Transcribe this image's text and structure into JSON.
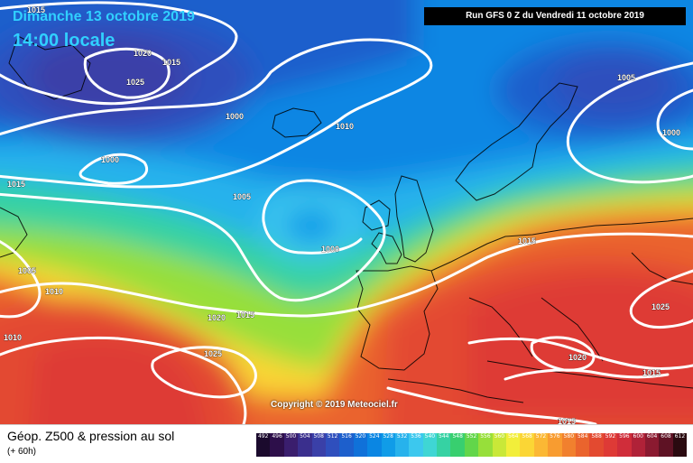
{
  "header": {
    "date_text": "Dimanche 13 octobre 2019",
    "time_text": "14:00 locale",
    "run_text": "Run GFS 0 Z du Vendredi 11 octobre 2019"
  },
  "copyright": "Copyright © 2019 Meteociel.fr",
  "legend": {
    "title": "Géop. Z500 & pression au sol",
    "subtitle": "(+ 60h)",
    "scale": [
      {
        "value": "492",
        "color": "#1b0a2d"
      },
      {
        "value": "496",
        "color": "#2d0f4a"
      },
      {
        "value": "500",
        "color": "#3a1e6d"
      },
      {
        "value": "504",
        "color": "#3a2f8d"
      },
      {
        "value": "508",
        "color": "#3a40a8"
      },
      {
        "value": "512",
        "color": "#2f4fbd"
      },
      {
        "value": "516",
        "color": "#1d5fcc"
      },
      {
        "value": "520",
        "color": "#1071d9"
      },
      {
        "value": "524",
        "color": "#0a86e3"
      },
      {
        "value": "528",
        "color": "#109ce8"
      },
      {
        "value": "532",
        "color": "#27b2ec"
      },
      {
        "value": "536",
        "color": "#3cc8ee"
      },
      {
        "value": "540",
        "color": "#3fd6d4"
      },
      {
        "value": "544",
        "color": "#36d2a3"
      },
      {
        "value": "548",
        "color": "#38cf6f"
      },
      {
        "value": "552",
        "color": "#62d64a"
      },
      {
        "value": "556",
        "color": "#97df3a"
      },
      {
        "value": "560",
        "color": "#c9e838"
      },
      {
        "value": "564",
        "color": "#f2ee3a"
      },
      {
        "value": "568",
        "color": "#fbd635"
      },
      {
        "value": "572",
        "color": "#fbb834"
      },
      {
        "value": "576",
        "color": "#f89c30"
      },
      {
        "value": "580",
        "color": "#f1802e"
      },
      {
        "value": "584",
        "color": "#ea642d"
      },
      {
        "value": "588",
        "color": "#e34a30"
      },
      {
        "value": "592",
        "color": "#de3a36"
      },
      {
        "value": "596",
        "color": "#d02d3a"
      },
      {
        "value": "600",
        "color": "#b02238"
      },
      {
        "value": "604",
        "color": "#8a1a30"
      },
      {
        "value": "608",
        "color": "#5e1224"
      },
      {
        "value": "612",
        "color": "#2a0a10"
      }
    ]
  },
  "isobars": [
    {
      "label": "1015"
    },
    {
      "label": "1020"
    },
    {
      "label": "1015"
    },
    {
      "label": "1025"
    },
    {
      "label": "1000"
    },
    {
      "label": "1010"
    },
    {
      "label": "1000"
    },
    {
      "label": "1015"
    },
    {
      "label": "1005"
    },
    {
      "label": "1000"
    },
    {
      "label": "1005"
    },
    {
      "label": "1010"
    },
    {
      "label": "1010"
    },
    {
      "label": "1020"
    },
    {
      "label": "1015"
    },
    {
      "label": "1025"
    },
    {
      "label": "1015"
    },
    {
      "label": "1005"
    },
    {
      "label": "1000"
    },
    {
      "label": "1025"
    },
    {
      "label": "1020"
    },
    {
      "label": "1015"
    },
    {
      "label": "1015"
    }
  ]
}
